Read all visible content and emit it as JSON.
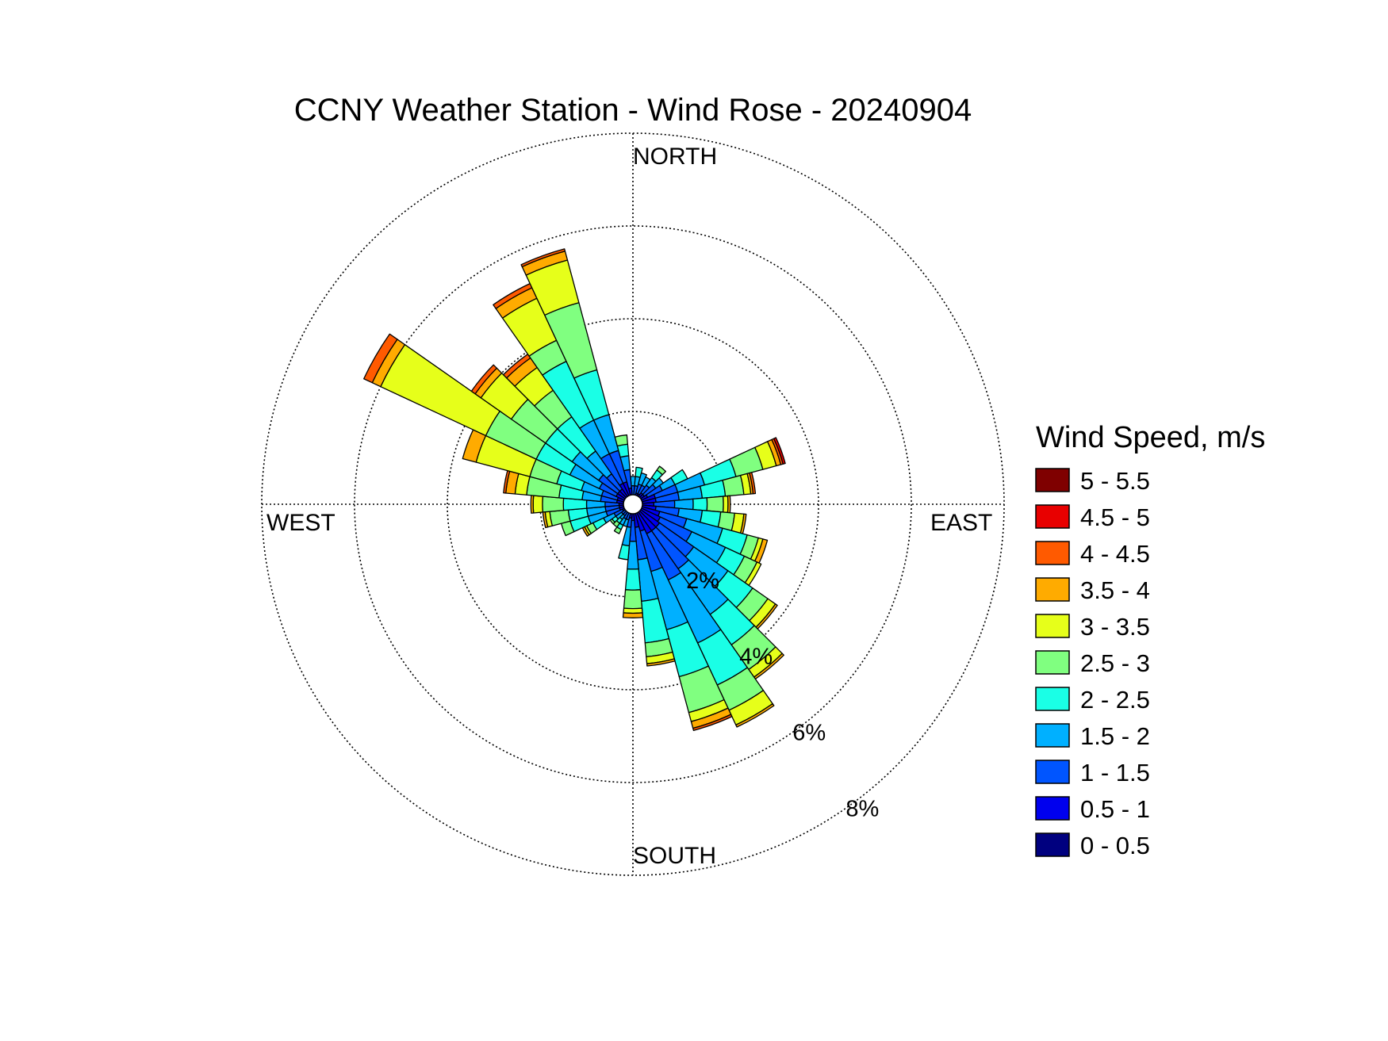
{
  "chart_data": {
    "type": "windrose",
    "title": "CCNY Weather Station - Wind Rose - 20240904",
    "direction_labels": {
      "north": "NORTH",
      "south": "SOUTH",
      "east": "EAST",
      "west": "WEST"
    },
    "radial_unit": "%",
    "radial_ticks": [
      2,
      4,
      6,
      8
    ],
    "radial_tick_labels": [
      "2%",
      "4%",
      "6%",
      "8%"
    ],
    "radial_max": 8,
    "sector_width_deg": 10,
    "legend": {
      "title": "Wind Speed, m/s",
      "bins": [
        {
          "label": "5 - 5.5",
          "color": "#7f0000"
        },
        {
          "label": "4.5 - 5",
          "color": "#e80000"
        },
        {
          "label": "4 - 4.5",
          "color": "#ff5a00"
        },
        {
          "label": "3.5 - 4",
          "color": "#ffab00"
        },
        {
          "label": "3 - 3.5",
          "color": "#e6ff1a"
        },
        {
          "label": "2.5 - 3",
          "color": "#80ff80"
        },
        {
          "label": "2 - 2.5",
          "color": "#1affe6"
        },
        {
          "label": "1.5 - 2",
          "color": "#00b0ff"
        },
        {
          "label": "1 - 1.5",
          "color": "#0055ff"
        },
        {
          "label": "0.5 - 1",
          "color": "#0000ee"
        },
        {
          "label": "0 - 0.5",
          "color": "#00007f"
        }
      ]
    },
    "bin_order_inner_to_outer": [
      "0 - 0.5",
      "0.5 - 1",
      "1 - 1.5",
      "1.5 - 2",
      "2 - 2.5",
      "2.5 - 3",
      "3 - 3.5",
      "3.5 - 4",
      "4 - 4.5",
      "4.5 - 5",
      "5 - 5.5"
    ],
    "sectors": [
      {
        "dir": 0,
        "cum": [
          0.1,
          0.2,
          0.4,
          0.6
        ]
      },
      {
        "dir": 10,
        "cum": [
          0.1,
          0.2,
          0.4,
          0.6,
          0.8
        ]
      },
      {
        "dir": 20,
        "cum": [
          0.1,
          0.25,
          0.45,
          0.7
        ]
      },
      {
        "dir": 30,
        "cum": [
          0.1,
          0.25,
          0.45,
          0.65
        ]
      },
      {
        "dir": 40,
        "cum": [
          0.1,
          0.3,
          0.5,
          0.7,
          0.9,
          1.0
        ]
      },
      {
        "dir": 50,
        "cum": [
          0.1,
          0.3,
          0.6,
          0.8
        ]
      },
      {
        "dir": 60,
        "cum": [
          0.1,
          0.35,
          0.7,
          1.0,
          1.3
        ]
      },
      {
        "dir": 70,
        "cum": [
          0.15,
          0.5,
          1.0,
          1.6,
          2.3,
          2.9,
          3.2,
          3.3,
          3.35,
          3.4
        ]
      },
      {
        "dir": 80,
        "cum": [
          0.15,
          0.5,
          1.0,
          1.5,
          2.0,
          2.4,
          2.55,
          2.6,
          2.65
        ]
      },
      {
        "dir": 90,
        "cum": [
          0.15,
          0.45,
          0.9,
          1.3,
          1.6,
          1.95,
          2.05,
          2.1
        ]
      },
      {
        "dir": 100,
        "cum": [
          0.15,
          0.5,
          1.0,
          1.5,
          1.9,
          2.2,
          2.4,
          2.45
        ]
      },
      {
        "dir": 110,
        "cum": [
          0.15,
          0.6,
          1.2,
          2.0,
          2.55,
          2.8,
          2.9,
          3.0
        ]
      },
      {
        "dir": 120,
        "cum": [
          0.15,
          0.65,
          1.4,
          2.2,
          2.65,
          2.95,
          3.05
        ]
      },
      {
        "dir": 130,
        "cum": [
          0.15,
          0.7,
          1.6,
          2.5,
          3.15,
          3.55,
          3.75,
          3.8
        ]
      },
      {
        "dir": 140,
        "cum": [
          0.15,
          0.7,
          1.7,
          2.9,
          3.7,
          4.35,
          4.55,
          4.6
        ]
      },
      {
        "dir": 150,
        "cum": [
          0.15,
          0.7,
          1.8,
          3.3,
          4.3,
          4.9,
          5.25,
          5.3
        ]
      },
      {
        "dir": 160,
        "cum": [
          0.15,
          0.6,
          1.5,
          2.8,
          3.85,
          4.65,
          4.85,
          5.0,
          5.05
        ]
      },
      {
        "dir": 170,
        "cum": [
          0.15,
          0.5,
          1.2,
          2.1,
          3.0,
          3.3,
          3.45,
          3.5
        ]
      },
      {
        "dir": 180,
        "cum": [
          0.1,
          0.35,
          0.8,
          1.4,
          1.85,
          2.25,
          2.35,
          2.45
        ]
      },
      {
        "dir": 190,
        "cum": [
          0.1,
          0.3,
          0.5,
          0.9,
          1.2
        ]
      },
      {
        "dir": 200,
        "cum": [
          0.1,
          0.2,
          0.35,
          0.5
        ]
      },
      {
        "dir": 210,
        "cum": [
          0.1,
          0.2,
          0.35,
          0.5,
          0.6,
          0.7
        ]
      },
      {
        "dir": 220,
        "cum": [
          0.1,
          0.2,
          0.3,
          0.4,
          0.5,
          0.6
        ]
      },
      {
        "dir": 230,
        "cum": [
          0.1,
          0.2,
          0.3,
          0.45,
          0.55,
          0.6
        ]
      },
      {
        "dir": 240,
        "cum": [
          0.1,
          0.25,
          0.45,
          0.7,
          0.95,
          1.1,
          1.15,
          1.2
        ]
      },
      {
        "dir": 250,
        "cum": [
          0.1,
          0.3,
          0.6,
          1.0,
          1.4,
          1.6
        ]
      },
      {
        "dir": 260,
        "cum": [
          0.1,
          0.3,
          0.6,
          1.0,
          1.4,
          1.8,
          1.9,
          1.95
        ]
      },
      {
        "dir": 270,
        "cum": [
          0.1,
          0.3,
          0.6,
          1.0,
          1.5,
          1.95,
          2.15,
          2.2
        ]
      },
      {
        "dir": 280,
        "cum": [
          0.1,
          0.35,
          0.7,
          1.1,
          1.6,
          2.3,
          2.55,
          2.75,
          2.8
        ]
      },
      {
        "dir": 290,
        "cum": [
          0.1,
          0.35,
          0.7,
          1.15,
          1.7,
          2.3,
          3.5,
          3.8
        ]
      },
      {
        "dir": 300,
        "cum": [
          0.1,
          0.4,
          0.8,
          1.5,
          2.3,
          3.5,
          6.0,
          6.2,
          6.4
        ]
      },
      {
        "dir": 310,
        "cum": [
          0.1,
          0.4,
          0.9,
          1.6,
          2.3,
          3.2,
          4.0,
          4.15,
          4.25
        ]
      },
      {
        "dir": 320,
        "cum": [
          0.1,
          0.4,
          0.8,
          1.4,
          2.3,
          3.0,
          3.6,
          3.85,
          3.95
        ]
      },
      {
        "dir": 330,
        "cum": [
          0.1,
          0.5,
          1.2,
          2.0,
          3.4,
          3.9,
          4.9,
          5.15,
          5.25
        ]
      },
      {
        "dir": 340,
        "cum": [
          0.1,
          0.5,
          1.2,
          2.0,
          3.0,
          4.5,
          5.45,
          5.65,
          5.7
        ]
      },
      {
        "dir": 350,
        "cum": [
          0.1,
          0.35,
          0.75,
          1.05,
          1.3,
          1.5
        ]
      }
    ]
  }
}
